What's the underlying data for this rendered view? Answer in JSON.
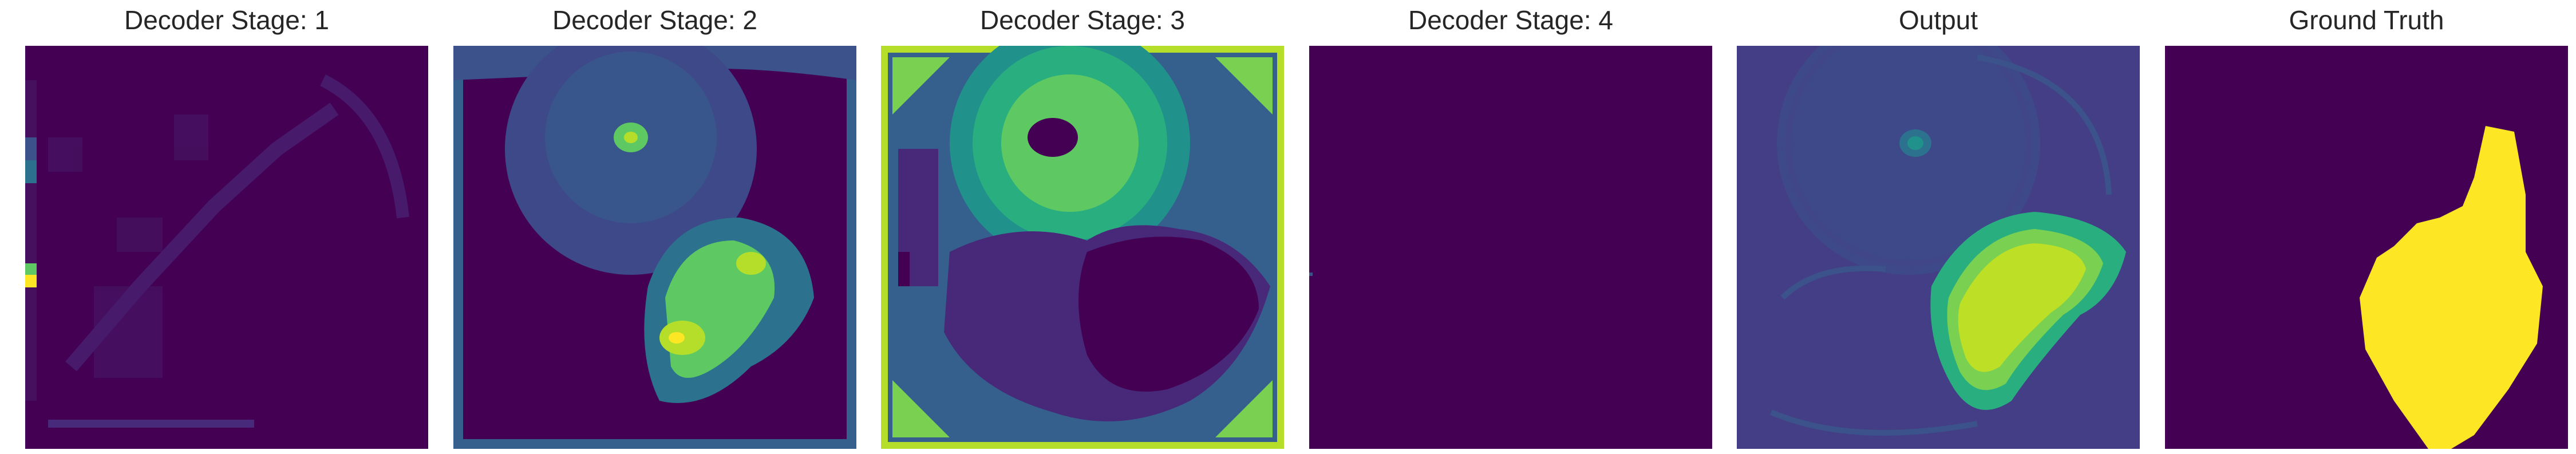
{
  "figure": {
    "panels": [
      {
        "id": "stage1",
        "title": "Decoder Stage: 1",
        "colormap": "viridis"
      },
      {
        "id": "stage2",
        "title": "Decoder Stage: 2",
        "colormap": "viridis"
      },
      {
        "id": "stage3",
        "title": "Decoder Stage: 3",
        "colormap": "viridis"
      },
      {
        "id": "stage4",
        "title": "Decoder Stage: 4",
        "colormap": "viridis"
      },
      {
        "id": "output",
        "title": "Output",
        "colormap": "viridis"
      },
      {
        "id": "gt",
        "title": "Ground Truth",
        "colormap": "viridis"
      }
    ]
  },
  "colors": {
    "viridis_dark": "#440154",
    "viridis_purple": "#472d7b",
    "viridis_blue": "#3b528b",
    "viridis_teal": "#2c728e",
    "viridis_green": "#21918c",
    "viridis_lightgreen": "#5ec962",
    "viridis_yellow": "#fde725",
    "title_text": "#262626",
    "background": "#ffffff"
  }
}
